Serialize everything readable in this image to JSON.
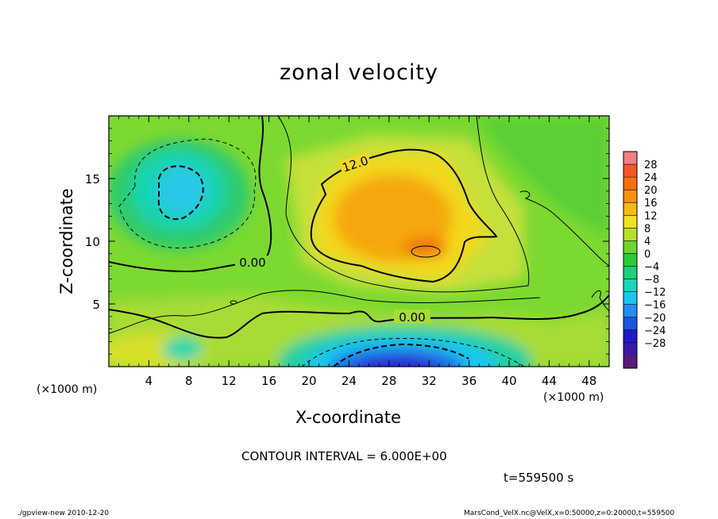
{
  "chart_data": {
    "type": "heatmap",
    "title": "zonal velocity",
    "xlabel": "X-coordinate",
    "ylabel": "Z-coordinate",
    "x_unit": "(×1000 m)",
    "y_unit": "(×1000 m)",
    "xlim": [
      0,
      50
    ],
    "ylim": [
      0,
      20
    ],
    "x_ticks": [
      "4",
      "8",
      "12",
      "16",
      "20",
      "24",
      "28",
      "32",
      "36",
      "40",
      "44",
      "48"
    ],
    "y_ticks": [
      "5",
      "10",
      "15"
    ],
    "colorbar": {
      "levels": [
        -28,
        -24,
        -20,
        -16,
        -12,
        -8,
        -4,
        0,
        4,
        8,
        12,
        16,
        20,
        24,
        28
      ],
      "labels": [
        "28",
        "24",
        "20",
        "16",
        "12",
        "8",
        "4",
        "0",
        "−4",
        "−8",
        "−12",
        "−16",
        "−20",
        "−24",
        "−28"
      ],
      "colors": [
        "#f07f86",
        "#f4562a",
        "#f5700f",
        "#f5930a",
        "#f5b914",
        "#f0e21e",
        "#b8e02a",
        "#6fd42a",
        "#2ccb3a",
        "#18d27c",
        "#16d6bd",
        "#1ac6f0",
        "#1f8ff0",
        "#1f52e0",
        "#2018c8",
        "#3a1aa0",
        "#5a1a78"
      ]
    },
    "contour_labels": [
      "12.0",
      "0.00",
      "0.00"
    ],
    "features": [
      {
        "name": "westward cell (upper left)",
        "x": 7,
        "z": 13.5,
        "value": -10
      },
      {
        "name": "eastward jet core",
        "x": 28,
        "z": 12,
        "value": 15
      },
      {
        "name": "eastward maximum",
        "x": 32,
        "z": 9,
        "value": 17
      },
      {
        "name": "westward flow near surface",
        "x": 29,
        "z": 1,
        "value": -22
      }
    ],
    "contour_interval_text": "CONTOUR INTERVAL = 6.000E+00",
    "time_text": "t=559500 s"
  },
  "footer": {
    "left": "./gpview-new   2010-12-20",
    "right": "MarsCond_VelX.nc@VelX,x=0:50000,z=0:20000,t=559500"
  }
}
